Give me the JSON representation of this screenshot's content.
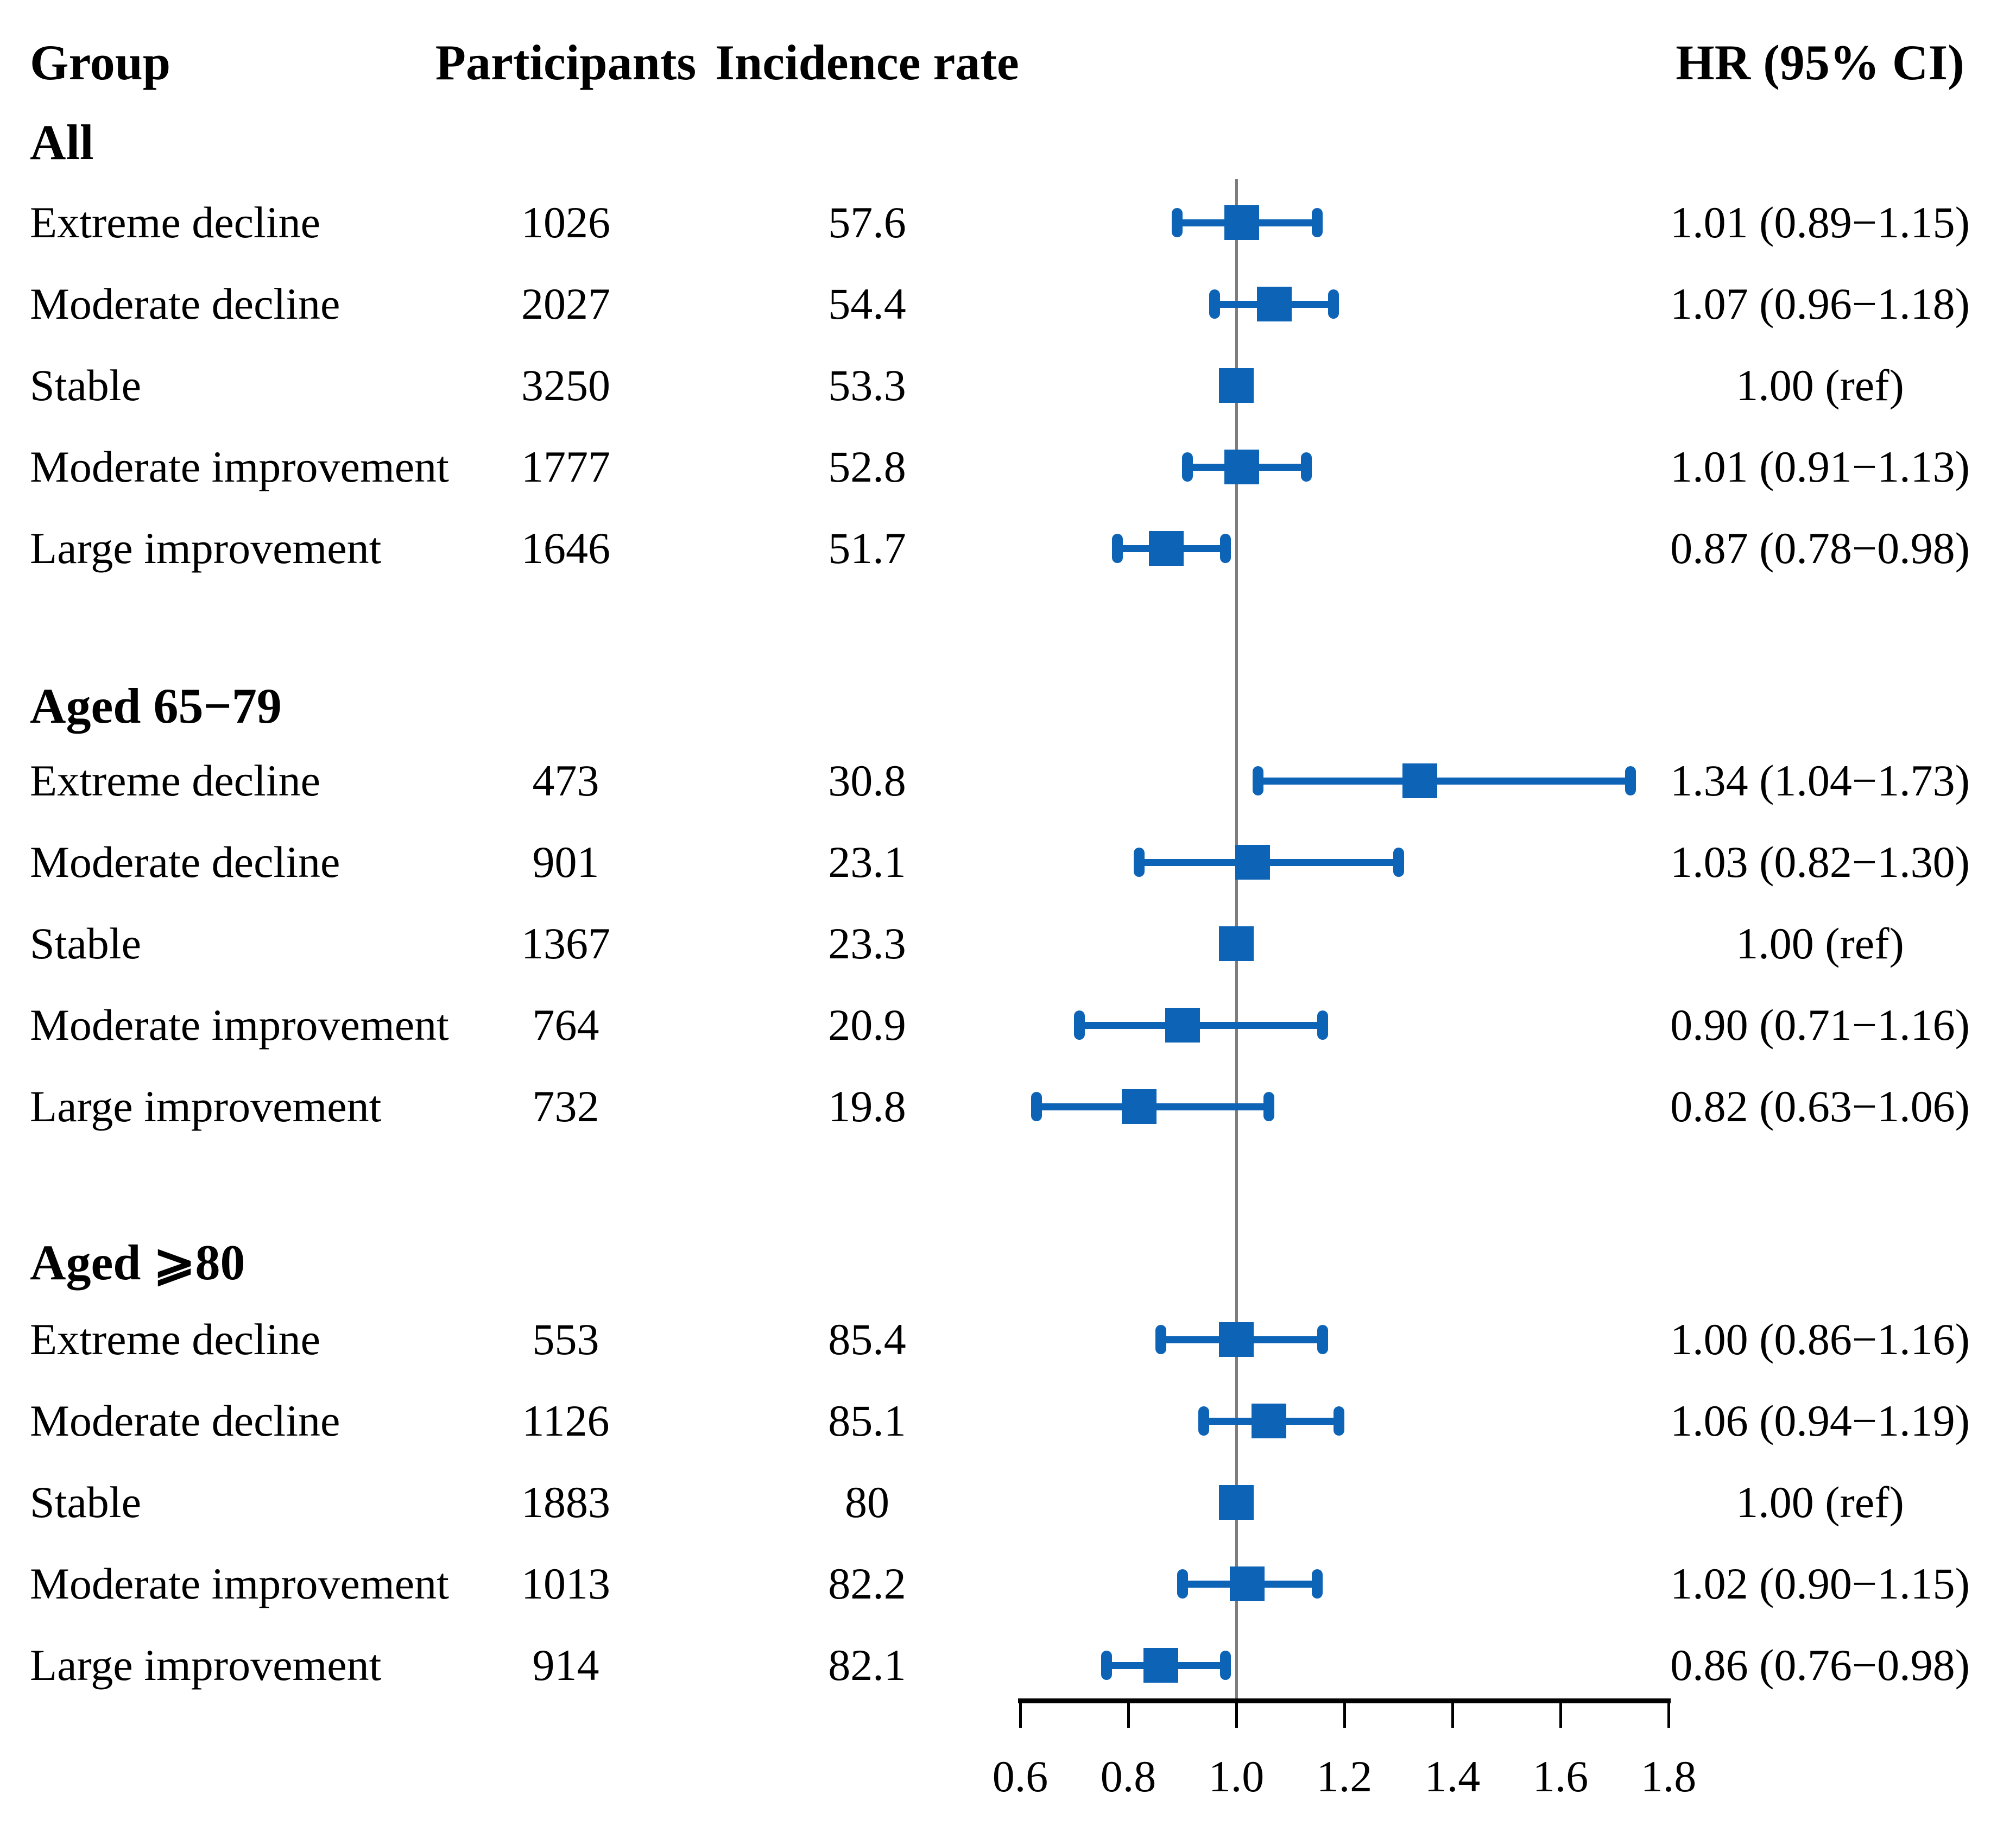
{
  "figure": {
    "header": {
      "group": "Group",
      "participants": "Participants",
      "incidence": "Incidence rate",
      "hr": "HR (95% CI)"
    }
  },
  "colors": {
    "marker_blue": "#0d63b5",
    "ref_line_gray": "#7d7d7d",
    "axis_black": "#000000",
    "text": "#000000",
    "background": "#ffffff"
  },
  "chart_data": {
    "type": "forest",
    "title": "",
    "columns": [
      "Group",
      "Participants",
      "Incidence rate",
      "HR (95% CI)"
    ],
    "xlim": [
      0.6,
      1.8
    ],
    "x_tick_labels": [
      "0.6",
      "0.8",
      "1.0",
      "1.2",
      "1.4",
      "1.6",
      "1.8"
    ],
    "x_tick_values": [
      0.6,
      0.8,
      1.0,
      1.2,
      1.4,
      1.6,
      1.8
    ],
    "reference_value": 1.0,
    "marker_shape": "square",
    "grid": false,
    "legend": "none",
    "sections": [
      {
        "title": "All",
        "rows": [
          {
            "group": "Extreme decline",
            "participants": "1026",
            "incidence": "57.6",
            "hr": 1.01,
            "ci_low": 0.89,
            "ci_high": 1.15,
            "hr_text": "1.01 (0.89−1.15)",
            "is_reference": false
          },
          {
            "group": "Moderate decline",
            "participants": "2027",
            "incidence": "54.4",
            "hr": 1.07,
            "ci_low": 0.96,
            "ci_high": 1.18,
            "hr_text": "1.07 (0.96−1.18)",
            "is_reference": false
          },
          {
            "group": "Stable",
            "participants": "3250",
            "incidence": "53.3",
            "hr": 1.0,
            "ci_low": null,
            "ci_high": null,
            "hr_text": "1.00 (ref)",
            "is_reference": true
          },
          {
            "group": "Moderate improvement",
            "participants": "1777",
            "incidence": "52.8",
            "hr": 1.01,
            "ci_low": 0.91,
            "ci_high": 1.13,
            "hr_text": "1.01 (0.91−1.13)",
            "is_reference": false
          },
          {
            "group": "Large improvement",
            "participants": "1646",
            "incidence": "51.7",
            "hr": 0.87,
            "ci_low": 0.78,
            "ci_high": 0.98,
            "hr_text": "0.87 (0.78−0.98)",
            "is_reference": false
          }
        ]
      },
      {
        "title": "Aged 65−79",
        "rows": [
          {
            "group": "Extreme decline",
            "participants": "473",
            "incidence": "30.8",
            "hr": 1.34,
            "ci_low": 1.04,
            "ci_high": 1.73,
            "hr_text": "1.34 (1.04−1.73)",
            "is_reference": false
          },
          {
            "group": "Moderate decline",
            "participants": "901",
            "incidence": "23.1",
            "hr": 1.03,
            "ci_low": 0.82,
            "ci_high": 1.3,
            "hr_text": "1.03 (0.82−1.30)",
            "is_reference": false
          },
          {
            "group": "Stable",
            "participants": "1367",
            "incidence": "23.3",
            "hr": 1.0,
            "ci_low": null,
            "ci_high": null,
            "hr_text": "1.00 (ref)",
            "is_reference": true
          },
          {
            "group": "Moderate improvement",
            "participants": "764",
            "incidence": "20.9",
            "hr": 0.9,
            "ci_low": 0.71,
            "ci_high": 1.16,
            "hr_text": "0.90 (0.71−1.16)",
            "is_reference": false
          },
          {
            "group": "Large improvement",
            "participants": "732",
            "incidence": "19.8",
            "hr": 0.82,
            "ci_low": 0.63,
            "ci_high": 1.06,
            "hr_text": "0.82 (0.63−1.06)",
            "is_reference": false
          }
        ]
      },
      {
        "title": "Aged ⩾80",
        "rows": [
          {
            "group": "Extreme decline",
            "participants": "553",
            "incidence": "85.4",
            "hr": 1.0,
            "ci_low": 0.86,
            "ci_high": 1.16,
            "hr_text": "1.00 (0.86−1.16)",
            "is_reference": false
          },
          {
            "group": "Moderate decline",
            "participants": "1126",
            "incidence": "85.1",
            "hr": 1.06,
            "ci_low": 0.94,
            "ci_high": 1.19,
            "hr_text": "1.06 (0.94−1.19)",
            "is_reference": false
          },
          {
            "group": "Stable",
            "participants": "1883",
            "incidence": "80",
            "hr": 1.0,
            "ci_low": null,
            "ci_high": null,
            "hr_text": "1.00 (ref)",
            "is_reference": true
          },
          {
            "group": "Moderate improvement",
            "participants": "1013",
            "incidence": "82.2",
            "hr": 1.02,
            "ci_low": 0.9,
            "ci_high": 1.15,
            "hr_text": "1.02 (0.90−1.15)",
            "is_reference": false
          },
          {
            "group": "Large improvement",
            "participants": "914",
            "incidence": "82.1",
            "hr": 0.86,
            "ci_low": 0.76,
            "ci_high": 0.98,
            "hr_text": "0.86 (0.76−0.98)",
            "is_reference": false
          }
        ]
      }
    ]
  }
}
